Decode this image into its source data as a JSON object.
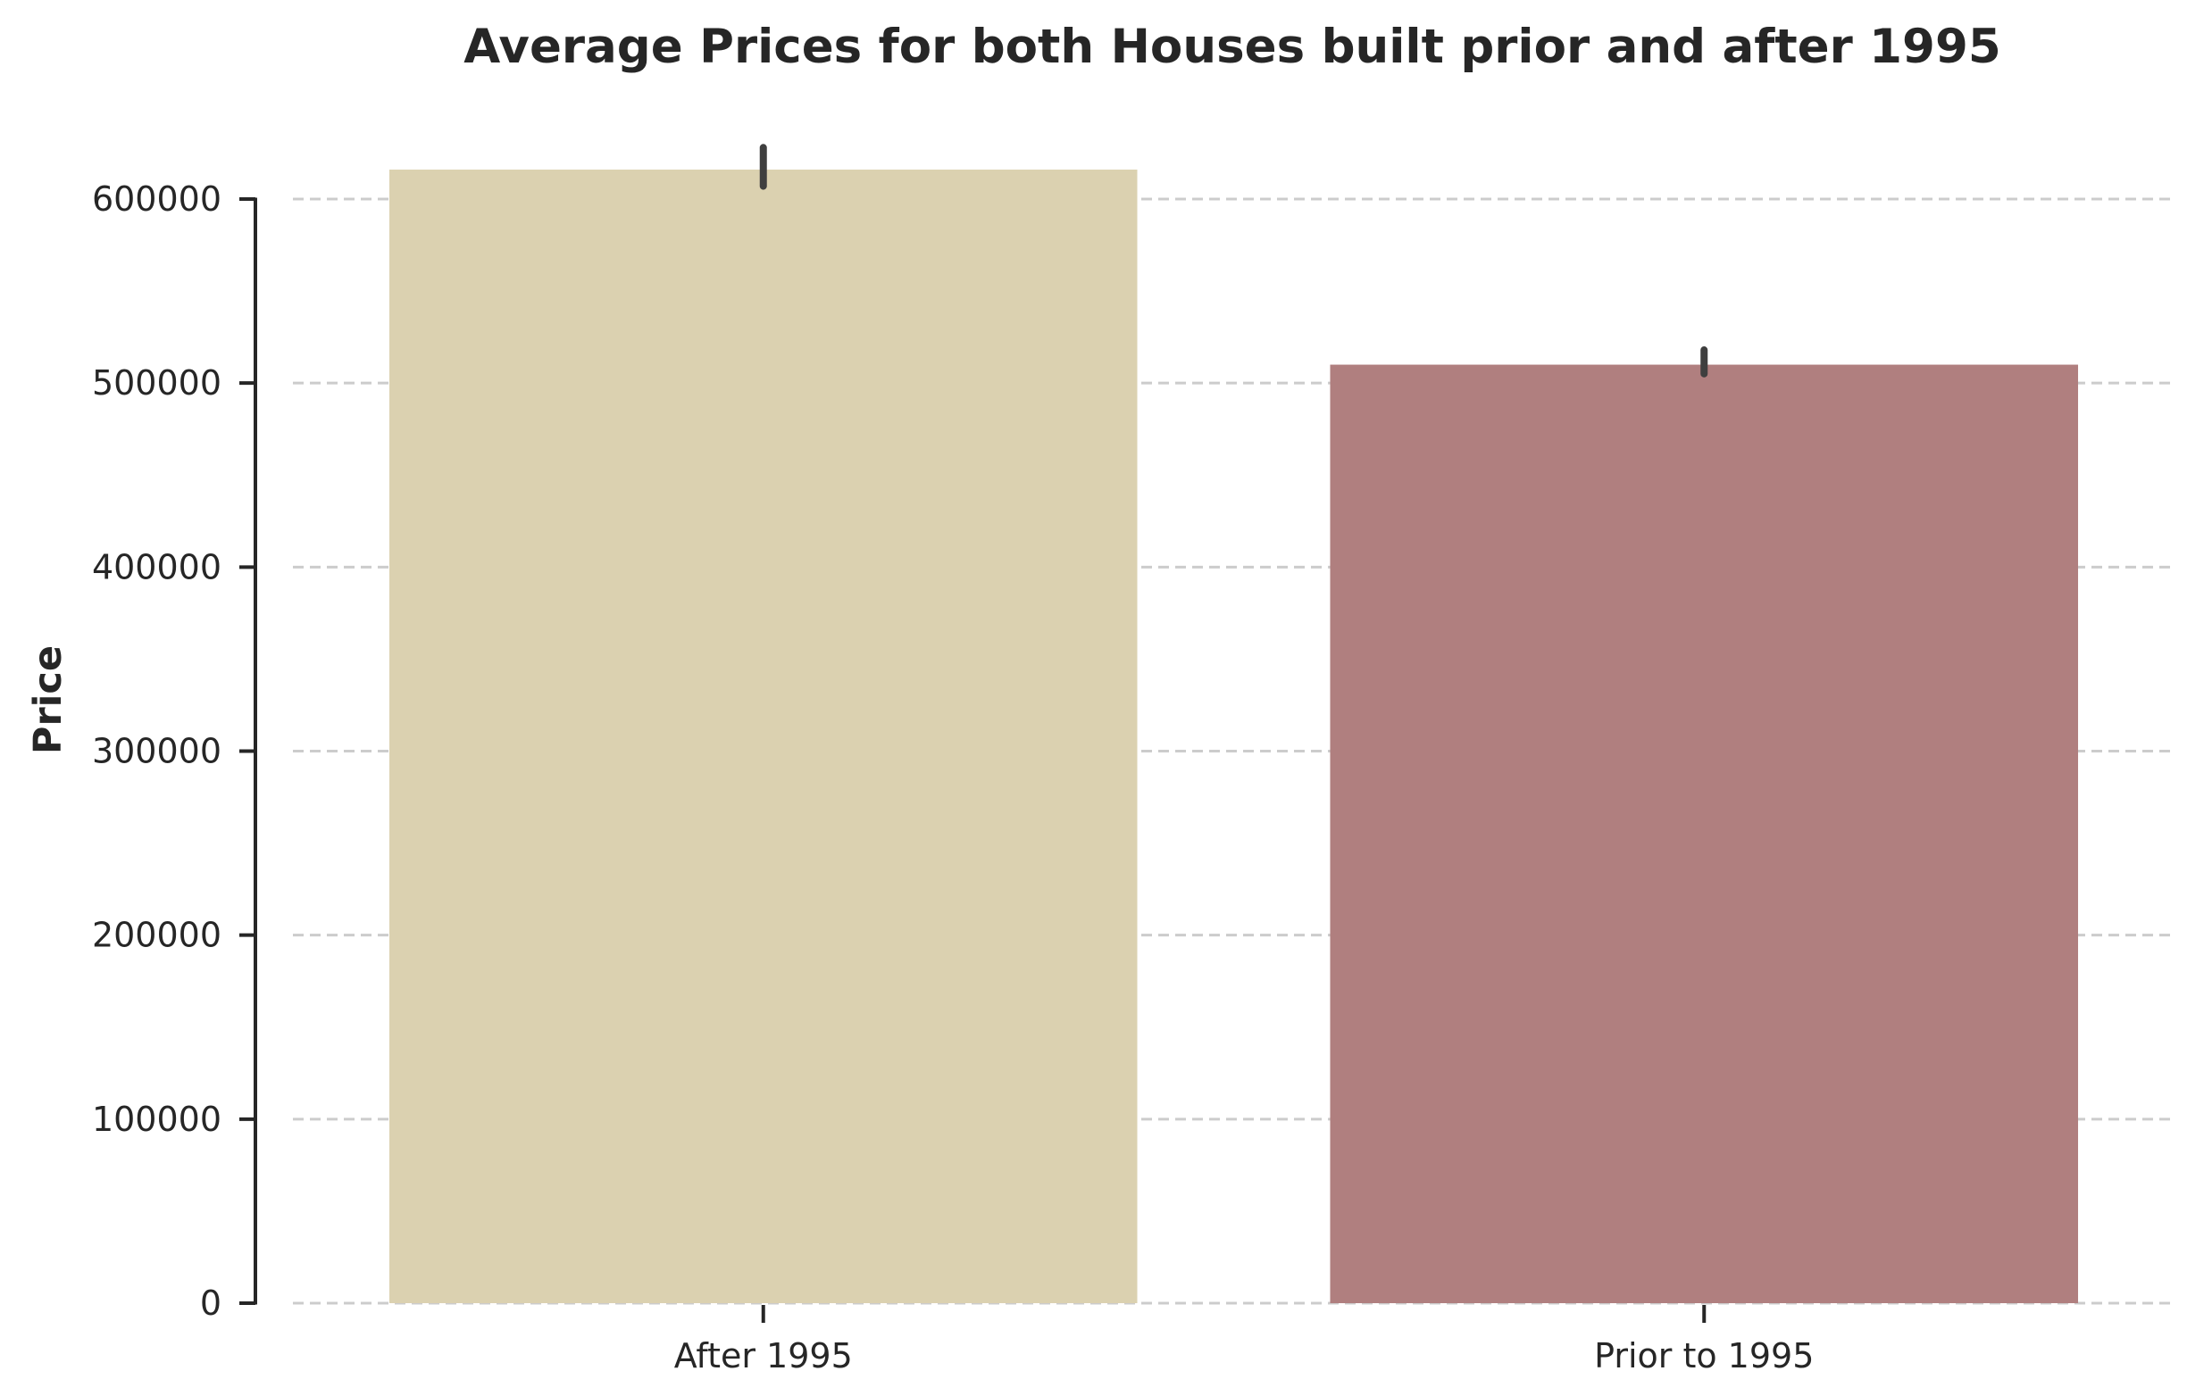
{
  "chart_data": {
    "type": "bar",
    "title": "Average Prices for both Houses built prior and after 1995",
    "xlabel": "",
    "ylabel": "Price",
    "categories": [
      "After 1995",
      "Prior to 1995"
    ],
    "values": [
      616000,
      510000
    ],
    "error_bars": [
      {
        "low": 607000,
        "high": 628000
      },
      {
        "low": 505000,
        "high": 518000
      }
    ],
    "colors": [
      "#dbd1b0",
      "#b07f7f"
    ],
    "ylim": [
      0,
      600000
    ],
    "yticks": [
      0,
      100000,
      200000,
      300000,
      400000,
      500000,
      600000
    ],
    "ytick_labels": [
      "0",
      "100000",
      "200000",
      "300000",
      "400000",
      "500000",
      "600000"
    ],
    "grid": "horizontal dashed",
    "legend": "none"
  }
}
